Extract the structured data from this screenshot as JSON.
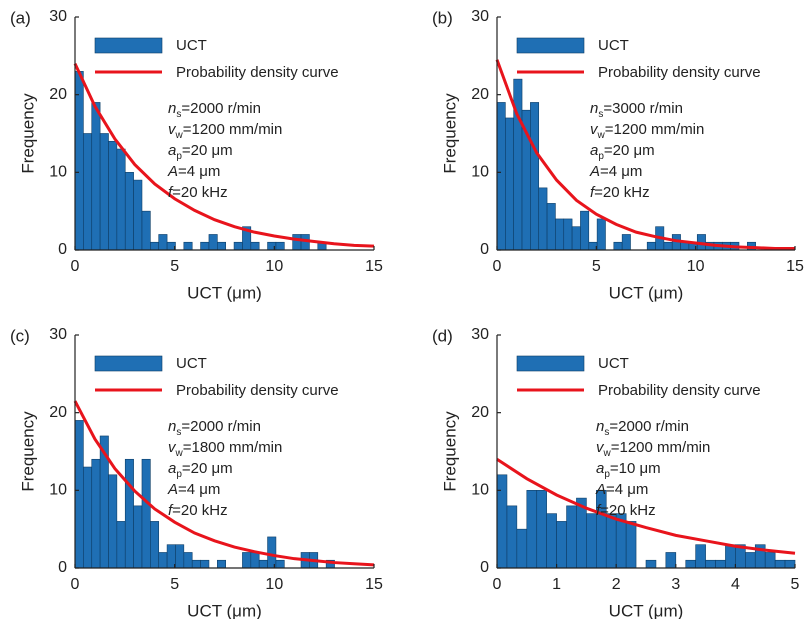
{
  "chart_data": [
    {
      "type": "histogram",
      "panel": "(a)",
      "xlabel": "UCT (μm)",
      "ylabel": "Frequency",
      "name": "UCT",
      "color": "#1f6fb4",
      "bins": [
        0,
        0.42,
        0.84,
        1.26,
        1.68,
        2.1,
        2.52,
        2.94,
        3.36,
        3.78,
        4.2,
        4.62,
        5.04,
        5.46,
        5.88,
        6.3,
        6.72,
        7.14,
        7.56,
        7.98,
        8.4,
        8.82,
        9.24,
        9.66,
        10.08,
        10.5,
        10.92,
        11.34,
        11.76,
        12.18,
        12.6
      ],
      "values": [
        23,
        15,
        19,
        15,
        14,
        13,
        10,
        9,
        5,
        1,
        2,
        1,
        0,
        1,
        0,
        1,
        2,
        1,
        0,
        1,
        3,
        1,
        0,
        1,
        1,
        0,
        2,
        2,
        0,
        1
      ],
      "curve": {
        "name": "Probability density curve",
        "color": "#e8141c",
        "x": [
          0,
          1,
          2,
          3,
          4,
          5,
          6,
          7,
          8,
          9,
          10,
          11,
          12,
          13,
          14,
          15
        ],
        "values": [
          24,
          18.5,
          14.3,
          11,
          8.5,
          6.6,
          5.1,
          3.9,
          3,
          2.3,
          1.8,
          1.4,
          1.1,
          0.8,
          0.6,
          0.5
        ]
      },
      "annotations": [
        {
          "symbol": "n",
          "sub": "s",
          "text": "=2000 r/min"
        },
        {
          "symbol": "v",
          "sub": "w",
          "text": "=1200 mm/min"
        },
        {
          "symbol": "a",
          "sub": "p",
          "text": "=20 μm"
        },
        {
          "symbol": "A",
          "text": "=4 μm"
        },
        {
          "symbol": "f",
          "text": "=20 kHz"
        }
      ],
      "xlim": [
        0,
        15
      ],
      "xticks": [
        0,
        5,
        10,
        15
      ],
      "ylim": [
        0,
        30
      ],
      "yticks": [
        0,
        10,
        20,
        30
      ],
      "grid": false
    },
    {
      "type": "histogram",
      "panel": "(b)",
      "xlabel": "UCT (μm)",
      "ylabel": "Frequency",
      "name": "UCT",
      "color": "#1f6fb4",
      "bins": [
        0,
        0.42,
        0.84,
        1.26,
        1.68,
        2.1,
        2.52,
        2.94,
        3.36,
        3.78,
        4.2,
        4.62,
        5.04,
        5.46,
        5.88,
        6.3,
        6.72,
        7.14,
        7.56,
        7.98,
        8.4,
        8.82,
        9.24,
        9.66,
        10.08,
        10.5,
        10.92,
        11.34,
        11.76,
        12.18,
        12.6,
        13.02
      ],
      "values": [
        19,
        17,
        22,
        18,
        19,
        8,
        6,
        4,
        4,
        3,
        5,
        1,
        4,
        0,
        1,
        2,
        0,
        0,
        1,
        3,
        1,
        2,
        1,
        1,
        2,
        1,
        1,
        1,
        1,
        0,
        1
      ],
      "curve": {
        "name": "Probability density curve",
        "color": "#e8141c",
        "x": [
          0,
          1,
          2,
          3,
          4,
          5,
          6,
          7,
          8,
          9,
          10,
          11,
          12,
          13,
          14,
          15
        ],
        "values": [
          24.5,
          17.5,
          12.5,
          9,
          6.4,
          4.6,
          3.3,
          2.3,
          1.7,
          1.2,
          0.9,
          0.6,
          0.4,
          0.3,
          0.2,
          0.2
        ]
      },
      "annotations": [
        {
          "symbol": "n",
          "sub": "s",
          "text": "=3000 r/min"
        },
        {
          "symbol": "v",
          "sub": "w",
          "text": "=1200 mm/min"
        },
        {
          "symbol": "a",
          "sub": "p",
          "text": "=20 μm"
        },
        {
          "symbol": "A",
          "text": "=4 μm"
        },
        {
          "symbol": "f",
          "text": "=20 kHz"
        }
      ],
      "xlim": [
        0,
        15
      ],
      "xticks": [
        0,
        5,
        10,
        15
      ],
      "ylim": [
        0,
        30
      ],
      "yticks": [
        0,
        10,
        20,
        30
      ],
      "grid": false
    },
    {
      "type": "histogram",
      "panel": "(c)",
      "xlabel": "UCT (μm)",
      "ylabel": "Frequency",
      "name": "UCT",
      "color": "#1f6fb4",
      "bins": [
        0,
        0.42,
        0.84,
        1.26,
        1.68,
        2.1,
        2.52,
        2.94,
        3.36,
        3.78,
        4.2,
        4.62,
        5.04,
        5.46,
        5.88,
        6.3,
        6.72,
        7.14,
        7.56,
        7.98,
        8.4,
        8.82,
        9.24,
        9.66,
        10.08,
        10.5,
        10.92,
        11.34,
        11.76,
        12.18,
        12.6,
        13.02
      ],
      "values": [
        19,
        13,
        14,
        17,
        12,
        6,
        14,
        8,
        14,
        6,
        2,
        3,
        3,
        2,
        1,
        1,
        0,
        1,
        0,
        0,
        2,
        2,
        1,
        4,
        1,
        0,
        0,
        2,
        2,
        0,
        1
      ],
      "curve": {
        "name": "Probability density curve",
        "color": "#e8141c",
        "x": [
          0,
          1,
          2,
          3,
          4,
          5,
          6,
          7,
          8,
          9,
          10,
          11,
          12,
          13,
          14,
          15
        ],
        "values": [
          21.5,
          16.6,
          12.8,
          9.9,
          7.6,
          5.9,
          4.5,
          3.5,
          2.7,
          2.1,
          1.6,
          1.2,
          0.95,
          0.7,
          0.55,
          0.4
        ]
      },
      "annotations": [
        {
          "symbol": "n",
          "sub": "s",
          "text": "=2000 r/min"
        },
        {
          "symbol": "v",
          "sub": "w",
          "text": "=1800 mm/min"
        },
        {
          "symbol": "a",
          "sub": "p",
          "text": "=20 μm"
        },
        {
          "symbol": "A",
          "text": "=4 μm"
        },
        {
          "symbol": "f",
          "text": "=20 kHz"
        }
      ],
      "xlim": [
        0,
        15
      ],
      "xticks": [
        0,
        5,
        10,
        15
      ],
      "ylim": [
        0,
        30
      ],
      "yticks": [
        0,
        10,
        20,
        30
      ],
      "grid": false
    },
    {
      "type": "histogram",
      "panel": "(d)",
      "xlabel": "UCT (μm)",
      "ylabel": "Frequency",
      "name": "UCT",
      "color": "#1f6fb4",
      "bins": [
        0,
        0.167,
        0.333,
        0.5,
        0.667,
        0.833,
        1,
        1.167,
        1.333,
        1.5,
        1.667,
        1.833,
        2,
        2.167,
        2.333,
        2.5,
        2.667,
        2.833,
        3,
        3.167,
        3.333,
        3.5,
        3.667,
        3.833,
        4,
        4.167,
        4.333,
        4.5,
        4.667,
        4.833,
        5
      ],
      "values": [
        12,
        8,
        5,
        10,
        10,
        7,
        6,
        8,
        9,
        7,
        10,
        7,
        7,
        6,
        0,
        1,
        0,
        2,
        0,
        1,
        3,
        1,
        1,
        3,
        3,
        2,
        3,
        2,
        1,
        1
      ],
      "curve": {
        "name": "Probability density curve",
        "color": "#e8141c",
        "x": [
          0,
          0.5,
          1,
          1.5,
          2,
          2.5,
          3,
          3.5,
          4,
          4.5,
          5
        ],
        "values": [
          14,
          11.5,
          9.4,
          7.7,
          6.3,
          5.2,
          4.2,
          3.5,
          2.8,
          2.3,
          1.9
        ]
      },
      "annotations": [
        {
          "symbol": "n",
          "sub": "s",
          "text": "=2000 r/min"
        },
        {
          "symbol": "v",
          "sub": "w",
          "text": "=1200 mm/min"
        },
        {
          "symbol": "a",
          "sub": "p",
          "text": "=10 μm"
        },
        {
          "symbol": "A",
          "text": "=4 μm"
        },
        {
          "symbol": "f",
          "text": "=20 kHz"
        }
      ],
      "xlim": [
        0,
        5
      ],
      "xticks": [
        0,
        1,
        2,
        3,
        4,
        5
      ],
      "ylim": [
        0,
        30
      ],
      "yticks": [
        0,
        10,
        20,
        30
      ],
      "grid": false
    }
  ]
}
